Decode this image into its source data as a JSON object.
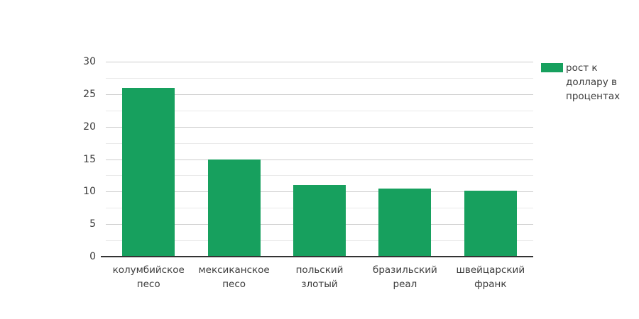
{
  "chart_data": {
    "type": "bar",
    "title": "",
    "xlabel": "",
    "ylabel": "",
    "categories": [
      "колумбийское песо",
      "мексиканское песо",
      "польский злотый",
      "бразильский реал",
      "швейцарский франк"
    ],
    "values": [
      26,
      15,
      11,
      10.5,
      10.1
    ],
    "series_name": "рост к доллару в процентах",
    "ylim": [
      0,
      30
    ],
    "yticks": [
      0,
      5,
      10,
      15,
      20,
      25,
      30
    ],
    "minor_gridline_step": 2.5,
    "grid": true,
    "legend_position": "top-right"
  },
  "legend": {
    "label": "рост к доллару в процентах"
  },
  "style": {
    "bar_color": "#17a05e",
    "grid_major_color": "#cccccc",
    "grid_minor_color": "#e9e9e9",
    "axis_color": "#333333",
    "text_color": "#3c3c3c"
  }
}
